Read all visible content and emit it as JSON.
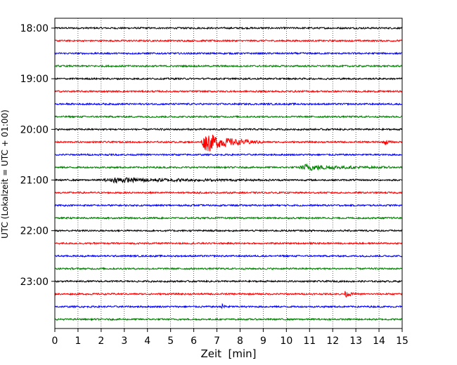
{
  "chart_data": {
    "type": "line",
    "chart_kind": "helicorder",
    "xlabel": "Zeit  [min]",
    "ylabel": "UTC (Lokalzeit = UTC + 01:00)",
    "xlim": [
      0,
      15
    ],
    "x_ticks": [
      "0",
      "1",
      "2",
      "3",
      "4",
      "5",
      "6",
      "7",
      "8",
      "9",
      "10",
      "11",
      "12",
      "13",
      "14",
      "15"
    ],
    "y_tick_labels": [
      "18:00",
      "19:00",
      "20:00",
      "21:00",
      "22:00",
      "23:00"
    ],
    "row_start_times": [
      "18:00",
      "18:15",
      "18:30",
      "18:45",
      "19:00",
      "19:15",
      "19:30",
      "19:45",
      "20:00",
      "20:15",
      "20:30",
      "20:45",
      "21:00",
      "21:15",
      "21:30",
      "21:45",
      "22:00",
      "22:15",
      "22:30",
      "22:45",
      "23:00",
      "23:15",
      "23:30",
      "23:45"
    ],
    "row_color_cycle": [
      "#000000",
      "#ff0000",
      "#0000ff",
      "#008000"
    ],
    "grid": "vertical dotted at each minute",
    "events": [
      {
        "row_start": "20:15",
        "x_start": 6.3,
        "x_end": 9.0,
        "description_amplitude": 3.0
      },
      {
        "row_start": "20:45",
        "x_start": 10.5,
        "x_end": 14.5,
        "description_amplitude": 0.8
      },
      {
        "row_start": "21:00",
        "x_start": 2.0,
        "x_end": 10.0,
        "description_amplitude": 0.6
      },
      {
        "row_start": "20:15",
        "x_start": 14.2,
        "x_end": 14.6,
        "description_amplitude": 1.0
      },
      {
        "row_start": "23:15",
        "x_start": 12.5,
        "x_end": 13.0,
        "description_amplitude": 1.0
      },
      {
        "row_start": "23:30",
        "x_start": 7.2,
        "x_end": 7.6,
        "description_amplitude": 0.8
      }
    ]
  }
}
